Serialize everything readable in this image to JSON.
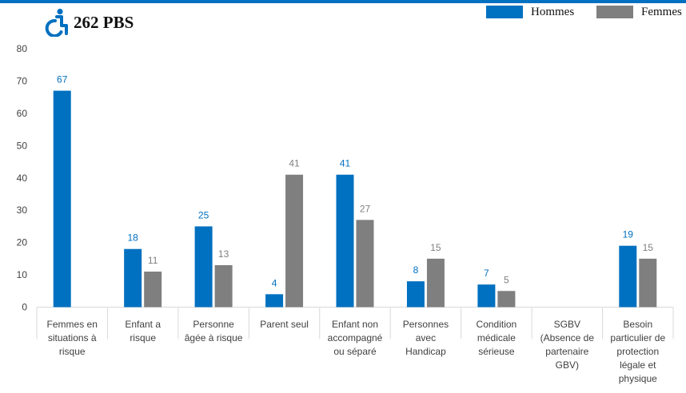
{
  "header": {
    "title": "262 PBS",
    "icon": "wheelchair-icon"
  },
  "colors": {
    "hommes": "#0070C0",
    "femmes": "#7F7F7F",
    "accent": "#0070C0",
    "grid": "#d9d9d9",
    "axis_text": "#404040"
  },
  "legend": {
    "items": [
      {
        "label": "Hommes",
        "color": "#0070C0"
      },
      {
        "label": "Femmes",
        "color": "#7F7F7F"
      }
    ]
  },
  "chart_data": {
    "type": "bar",
    "categories": [
      [
        "Femmes en",
        "situations à",
        "risque"
      ],
      [
        "Enfant a",
        "risque"
      ],
      [
        "Personne",
        "âgée à risque"
      ],
      [
        "Parent seul"
      ],
      [
        "Enfant non",
        "accompagné",
        "ou séparé"
      ],
      [
        "Personnes",
        "avec",
        "Handicap"
      ],
      [
        "Condition",
        "médicale",
        "sérieuse"
      ],
      [
        "SGBV",
        "(Absence de",
        "partenaire",
        "GBV)"
      ],
      [
        "Besoin",
        "particulier de",
        "protection",
        "légale et",
        "physique"
      ]
    ],
    "series": [
      {
        "name": "Hommes",
        "values": [
          67,
          18,
          25,
          4,
          41,
          8,
          7,
          null,
          19
        ],
        "labels": [
          "67",
          "18",
          "25",
          "4",
          "41",
          "8",
          "7",
          "",
          "19"
        ]
      },
      {
        "name": "Femmes",
        "values": [
          null,
          11,
          13,
          41,
          27,
          15,
          5,
          null,
          15
        ],
        "labels": [
          "",
          "11",
          "13",
          "41",
          "27",
          "15",
          "5",
          "",
          "15"
        ]
      }
    ],
    "yticks": [
      "0",
      "10",
      "20",
      "30",
      "40",
      "50",
      "60",
      "70",
      "80"
    ],
    "ylim": [
      0,
      80
    ],
    "legend_position": "top-right",
    "grid": false
  }
}
